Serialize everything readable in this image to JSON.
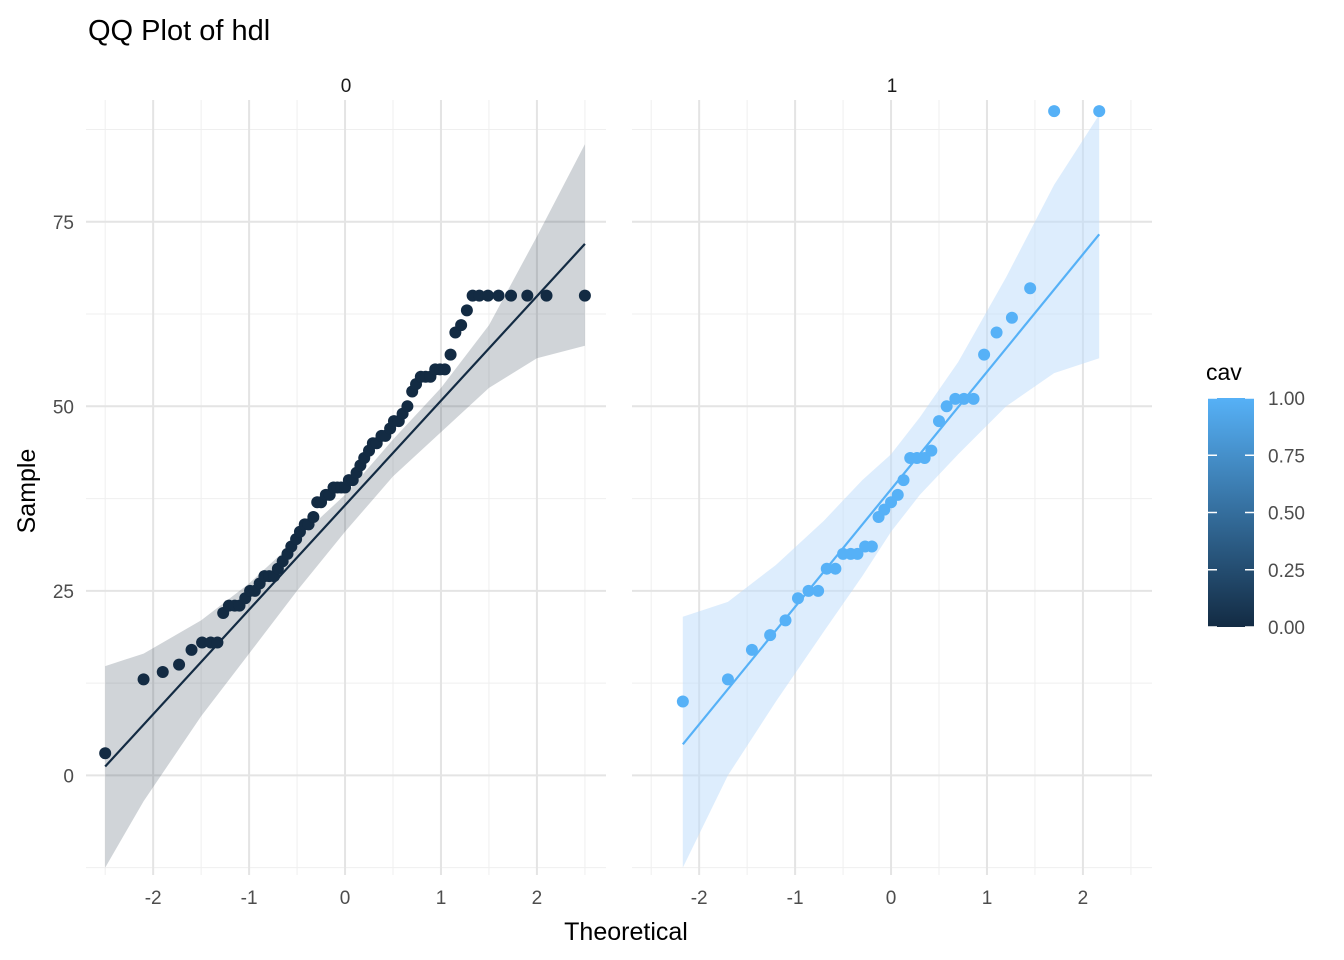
{
  "chart_data": {
    "type": "scatter",
    "title": "QQ Plot of hdl",
    "xlabel": "Theoretical",
    "ylabel": "Sample",
    "xlim": [
      -2.7,
      2.72
    ],
    "ylim": [
      -13.5,
      91.5
    ],
    "x_ticks": [
      -2,
      -1,
      0,
      1,
      2
    ],
    "x_tick_labels": [
      "-2",
      "-1",
      "0",
      "1",
      "2"
    ],
    "y_ticks": [
      0,
      25,
      50,
      75
    ],
    "y_tick_labels": [
      "0",
      "25",
      "50",
      "75"
    ],
    "grid": true,
    "legend": {
      "title": "cav",
      "position": "right",
      "type": "colorbar",
      "labels": [
        "1.00",
        "0.75",
        "0.50",
        "0.25",
        "0.00"
      ],
      "low_color": "#132B43",
      "high_color": "#56B1F7"
    },
    "panels": [
      {
        "strip_label": "0",
        "color": "#132B43",
        "band_color": "#2a3a4d",
        "line": {
          "x": [
            -2.5,
            2.5
          ],
          "y": [
            1.2,
            72
          ]
        },
        "band": {
          "x": [
            -2.5,
            -2.1,
            -1.5,
            -1.0,
            -0.5,
            0.0,
            0.5,
            1.0,
            1.5,
            2.0,
            2.5
          ],
          "upper": [
            14.8,
            16.5,
            21.0,
            26.0,
            32.0,
            38.0,
            45.5,
            52.5,
            61.0,
            73.0,
            85.5
          ],
          "lower": [
            -12.5,
            -3.5,
            8.0,
            16.5,
            25.0,
            33.0,
            40.5,
            46.5,
            52.5,
            56.5,
            58.2
          ]
        },
        "points": {
          "x": [
            -2.5,
            -2.1,
            -1.9,
            -1.73,
            -1.6,
            -1.49,
            -1.4,
            -1.33,
            -1.27,
            -1.21,
            -1.15,
            -1.1,
            -1.04,
            -0.99,
            -0.94,
            -0.89,
            -0.84,
            -0.79,
            -0.74,
            -0.7,
            -0.65,
            -0.6,
            -0.56,
            -0.51,
            -0.47,
            -0.42,
            -0.38,
            -0.33,
            -0.29,
            -0.25,
            -0.2,
            -0.16,
            -0.12,
            -0.08,
            -0.04,
            0.0,
            0.04,
            0.08,
            0.12,
            0.16,
            0.2,
            0.25,
            0.29,
            0.33,
            0.38,
            0.42,
            0.47,
            0.51,
            0.56,
            0.6,
            0.65,
            0.7,
            0.74,
            0.79,
            0.84,
            0.89,
            0.94,
            0.99,
            1.04,
            1.1,
            1.15,
            1.21,
            1.27,
            1.33,
            1.4,
            1.49,
            1.6,
            1.73,
            1.9,
            2.1,
            2.5
          ],
          "y": [
            3,
            13,
            14,
            15,
            17,
            18,
            18,
            18,
            22,
            23,
            23,
            23,
            24,
            25,
            25,
            26,
            27,
            27,
            27,
            28,
            29,
            30,
            31,
            32,
            33,
            34,
            34,
            35,
            37,
            37,
            38,
            38,
            39,
            39,
            39,
            39,
            40,
            40,
            41,
            42,
            43,
            44,
            45,
            45,
            46,
            46,
            47,
            48,
            48,
            49,
            50,
            52,
            53,
            54,
            54,
            54,
            55,
            55,
            55,
            57,
            60,
            61,
            63,
            65,
            65,
            65,
            65,
            65,
            65,
            65,
            65
          ]
        }
      },
      {
        "strip_label": "1",
        "color": "#56B1F7",
        "band_color": "#bcdcfb",
        "line": {
          "x": [
            -2.17,
            2.17
          ],
          "y": [
            4.2,
            73.3
          ]
        },
        "band": {
          "x": [
            -2.17,
            -1.7,
            -1.2,
            -0.7,
            -0.3,
            0.0,
            0.3,
            0.7,
            1.2,
            1.7,
            2.17
          ],
          "upper": [
            21.5,
            23.5,
            28.5,
            34.5,
            40.0,
            43.5,
            48.5,
            56.0,
            67.5,
            80.0,
            89.5
          ],
          "lower": [
            -12.5,
            0.0,
            10.0,
            19.5,
            27.0,
            33.0,
            38.0,
            43.5,
            50.0,
            54.5,
            56.5
          ]
        },
        "points": {
          "x": [
            -2.17,
            -1.7,
            -1.45,
            -1.26,
            -1.1,
            -0.97,
            -0.86,
            -0.76,
            -0.67,
            -0.58,
            -0.5,
            -0.42,
            -0.35,
            -0.27,
            -0.2,
            -0.13,
            -0.07,
            0.0,
            0.07,
            0.13,
            0.2,
            0.27,
            0.35,
            0.42,
            0.5,
            0.58,
            0.67,
            0.76,
            0.86,
            0.97,
            1.1,
            1.26,
            1.45,
            1.7,
            2.17
          ],
          "y": [
            10,
            13,
            17,
            19,
            21,
            24,
            25,
            25,
            28,
            28,
            30,
            30,
            30,
            31,
            31,
            35,
            36,
            37,
            38,
            40,
            43,
            43,
            43,
            44,
            48,
            50,
            51,
            51,
            51,
            57,
            60,
            62,
            66,
            90,
            90
          ]
        }
      }
    ]
  }
}
